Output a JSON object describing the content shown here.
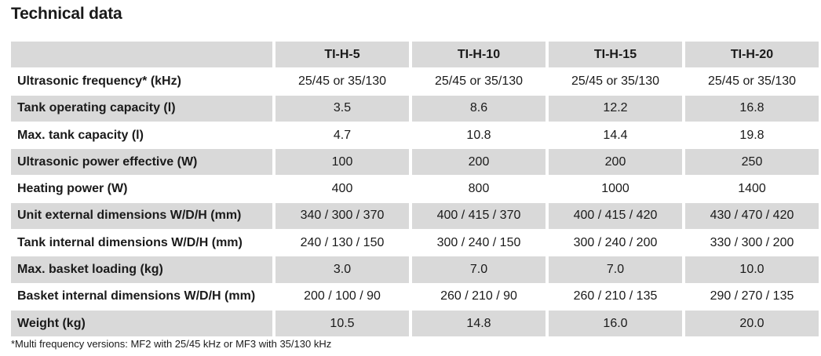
{
  "title": "Technical data",
  "table": {
    "columns": [
      "TI-H-5",
      "TI-H-10",
      "TI-H-15",
      "TI-H-20"
    ],
    "rows": [
      {
        "label": "Ultrasonic frequency* (kHz)",
        "values": [
          "25/45 or 35/130",
          "25/45 or 35/130",
          "25/45 or 35/130",
          "25/45 or 35/130"
        ]
      },
      {
        "label": "Tank operating capacity (l)",
        "values": [
          "3.5",
          "8.6",
          "12.2",
          "16.8"
        ]
      },
      {
        "label": "Max. tank capacity (l)",
        "values": [
          "4.7",
          "10.8",
          "14.4",
          "19.8"
        ]
      },
      {
        "label": "Ultrasonic power effective (W)",
        "values": [
          "100",
          "200",
          "200",
          "250"
        ]
      },
      {
        "label": "Heating power (W)",
        "values": [
          "400",
          "800",
          "1000",
          "1400"
        ]
      },
      {
        "label": "Unit external dimensions W/D/H (mm)",
        "values": [
          "340 / 300 / 370",
          "400 / 415 / 370",
          "400 / 415 / 420",
          "430 / 470 / 420"
        ]
      },
      {
        "label": "Tank internal dimensions W/D/H (mm)",
        "values": [
          "240 / 130 / 150",
          "300 / 240 / 150",
          "300 / 240 / 200",
          "330 / 300 / 200"
        ]
      },
      {
        "label": "Max. basket loading (kg)",
        "values": [
          "3.0",
          "7.0",
          "7.0",
          "10.0"
        ]
      },
      {
        "label": "Basket internal dimensions W/D/H (mm)",
        "values": [
          "200 / 100 / 90",
          "260 / 210 / 90",
          "260 / 210 / 135",
          "290 / 270 / 135"
        ]
      },
      {
        "label": "Weight (kg)",
        "values": [
          "10.5",
          "14.8",
          "16.0",
          "20.0"
        ]
      }
    ]
  },
  "footnote": "*Multi frequency versions: MF2 with 25/45 kHz or MF3 with 35/130 kHz",
  "colors": {
    "row_shade": "#d9d9d9",
    "text": "#1a1a1a",
    "background": "#ffffff"
  }
}
